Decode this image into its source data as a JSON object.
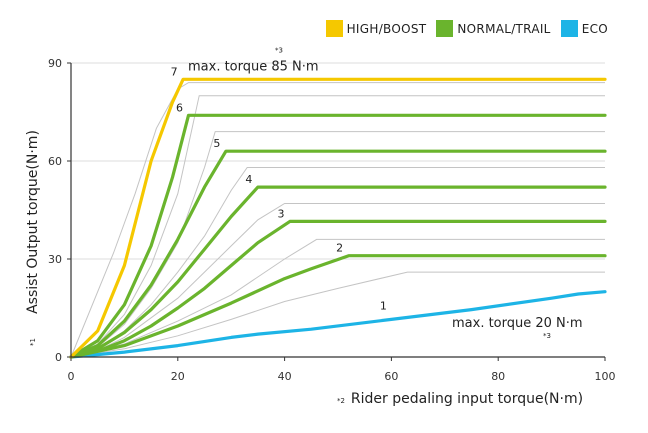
{
  "chart_data": {
    "type": "line",
    "xlabel": "Rider pedaling input torque(N·m)",
    "xlabel_mark": "*2",
    "ylabel": "Assist Output torque(N·m)",
    "ylabel_mark": "*1",
    "xlim": [
      0,
      100
    ],
    "ylim": [
      0,
      90
    ],
    "x_ticks": [
      0,
      20,
      40,
      60,
      80,
      100
    ],
    "y_ticks": [
      0,
      30,
      60,
      90
    ],
    "legend_position": "top-right",
    "legend": [
      {
        "label": "HIGH/BOOST",
        "color": "#f5c800"
      },
      {
        "label": "NORMAL/TRAIL",
        "color": "#6ab42d"
      },
      {
        "label": "ECO",
        "color": "#1db4e6"
      }
    ],
    "annotations": {
      "max_high": {
        "text": "max. torque 85 N·m",
        "mark": "*3"
      },
      "max_low": {
        "text": "max. torque 20 N·m",
        "mark": "*3"
      }
    },
    "series": [
      {
        "level": "7",
        "mode": "HIGH/BOOST",
        "color": "#f5c800",
        "points": [
          [
            0,
            0
          ],
          [
            5,
            8
          ],
          [
            10,
            28
          ],
          [
            15,
            60
          ],
          [
            19,
            78
          ],
          [
            21,
            85
          ],
          [
            100,
            85
          ]
        ]
      },
      {
        "level": "6",
        "mode": "NORMAL/TRAIL",
        "color": "#6ab42d",
        "points": [
          [
            0,
            0
          ],
          [
            5,
            5
          ],
          [
            10,
            16
          ],
          [
            15,
            34
          ],
          [
            19,
            55
          ],
          [
            22,
            74
          ],
          [
            100,
            74
          ]
        ]
      },
      {
        "level": "5",
        "mode": "NORMAL/TRAIL",
        "color": "#6ab42d",
        "points": [
          [
            0,
            0
          ],
          [
            5,
            3.5
          ],
          [
            10,
            11
          ],
          [
            15,
            22
          ],
          [
            20,
            36
          ],
          [
            25,
            52
          ],
          [
            29,
            63
          ],
          [
            100,
            63
          ]
        ]
      },
      {
        "level": "4",
        "mode": "NORMAL/TRAIL",
        "color": "#6ab42d",
        "points": [
          [
            0,
            0
          ],
          [
            5,
            2.5
          ],
          [
            10,
            7.5
          ],
          [
            15,
            14.5
          ],
          [
            20,
            23
          ],
          [
            25,
            33
          ],
          [
            30,
            43
          ],
          [
            35,
            52
          ],
          [
            100,
            52
          ]
        ]
      },
      {
        "level": "3",
        "mode": "NORMAL/TRAIL",
        "color": "#6ab42d",
        "points": [
          [
            0,
            0
          ],
          [
            5,
            1.8
          ],
          [
            10,
            5
          ],
          [
            15,
            9.5
          ],
          [
            20,
            15
          ],
          [
            25,
            21
          ],
          [
            30,
            28
          ],
          [
            35,
            35
          ],
          [
            41,
            41.5
          ],
          [
            100,
            41.5
          ]
        ]
      },
      {
        "level": "2",
        "mode": "NORMAL/TRAIL",
        "color": "#6ab42d",
        "points": [
          [
            0,
            0
          ],
          [
            10,
            3.5
          ],
          [
            20,
            9.5
          ],
          [
            30,
            16.5
          ],
          [
            40,
            24
          ],
          [
            45,
            27
          ],
          [
            52,
            31
          ],
          [
            100,
            31
          ]
        ]
      },
      {
        "level": "1",
        "mode": "ECO",
        "color": "#1db4e6",
        "points": [
          [
            0,
            0
          ],
          [
            10,
            1.5
          ],
          [
            20,
            3.5
          ],
          [
            30,
            6
          ],
          [
            35,
            7
          ],
          [
            45,
            8.5
          ],
          [
            60,
            11.5
          ],
          [
            75,
            14.5
          ],
          [
            90,
            18
          ],
          [
            95,
            19.3
          ],
          [
            100,
            20
          ]
        ]
      }
    ],
    "intermediate_levels": [
      {
        "points": [
          [
            0,
            0
          ],
          [
            8,
            32
          ],
          [
            12,
            50
          ],
          [
            16,
            70
          ],
          [
            20,
            82
          ],
          [
            22,
            84
          ],
          [
            100,
            84
          ]
        ]
      },
      {
        "points": [
          [
            0,
            0
          ],
          [
            5,
            4
          ],
          [
            10,
            13
          ],
          [
            15,
            28
          ],
          [
            20,
            50
          ],
          [
            24,
            80
          ],
          [
            100,
            80
          ]
        ]
      },
      {
        "points": [
          [
            0,
            0
          ],
          [
            5,
            3
          ],
          [
            10,
            10
          ],
          [
            15,
            21
          ],
          [
            20,
            35
          ],
          [
            25,
            58
          ],
          [
            27,
            69
          ],
          [
            100,
            69
          ]
        ]
      },
      {
        "points": [
          [
            0,
            0
          ],
          [
            5,
            2.5
          ],
          [
            10,
            8
          ],
          [
            15,
            16
          ],
          [
            20,
            26
          ],
          [
            25,
            37
          ],
          [
            30,
            51
          ],
          [
            33,
            58
          ],
          [
            100,
            58
          ]
        ]
      },
      {
        "points": [
          [
            0,
            0
          ],
          [
            5,
            2
          ],
          [
            10,
            6
          ],
          [
            15,
            12
          ],
          [
            20,
            18
          ],
          [
            25,
            26
          ],
          [
            30,
            34
          ],
          [
            35,
            42
          ],
          [
            40,
            47
          ],
          [
            100,
            47
          ]
        ]
      },
      {
        "points": [
          [
            0,
            0
          ],
          [
            10,
            4
          ],
          [
            20,
            11
          ],
          [
            30,
            19
          ],
          [
            40,
            30
          ],
          [
            46,
            36
          ],
          [
            100,
            36
          ]
        ]
      },
      {
        "points": [
          [
            0,
            0
          ],
          [
            10,
            2.5
          ],
          [
            20,
            6.5
          ],
          [
            30,
            11.5
          ],
          [
            40,
            17
          ],
          [
            50,
            21
          ],
          [
            63,
            26
          ],
          [
            100,
            26
          ]
        ]
      }
    ]
  }
}
